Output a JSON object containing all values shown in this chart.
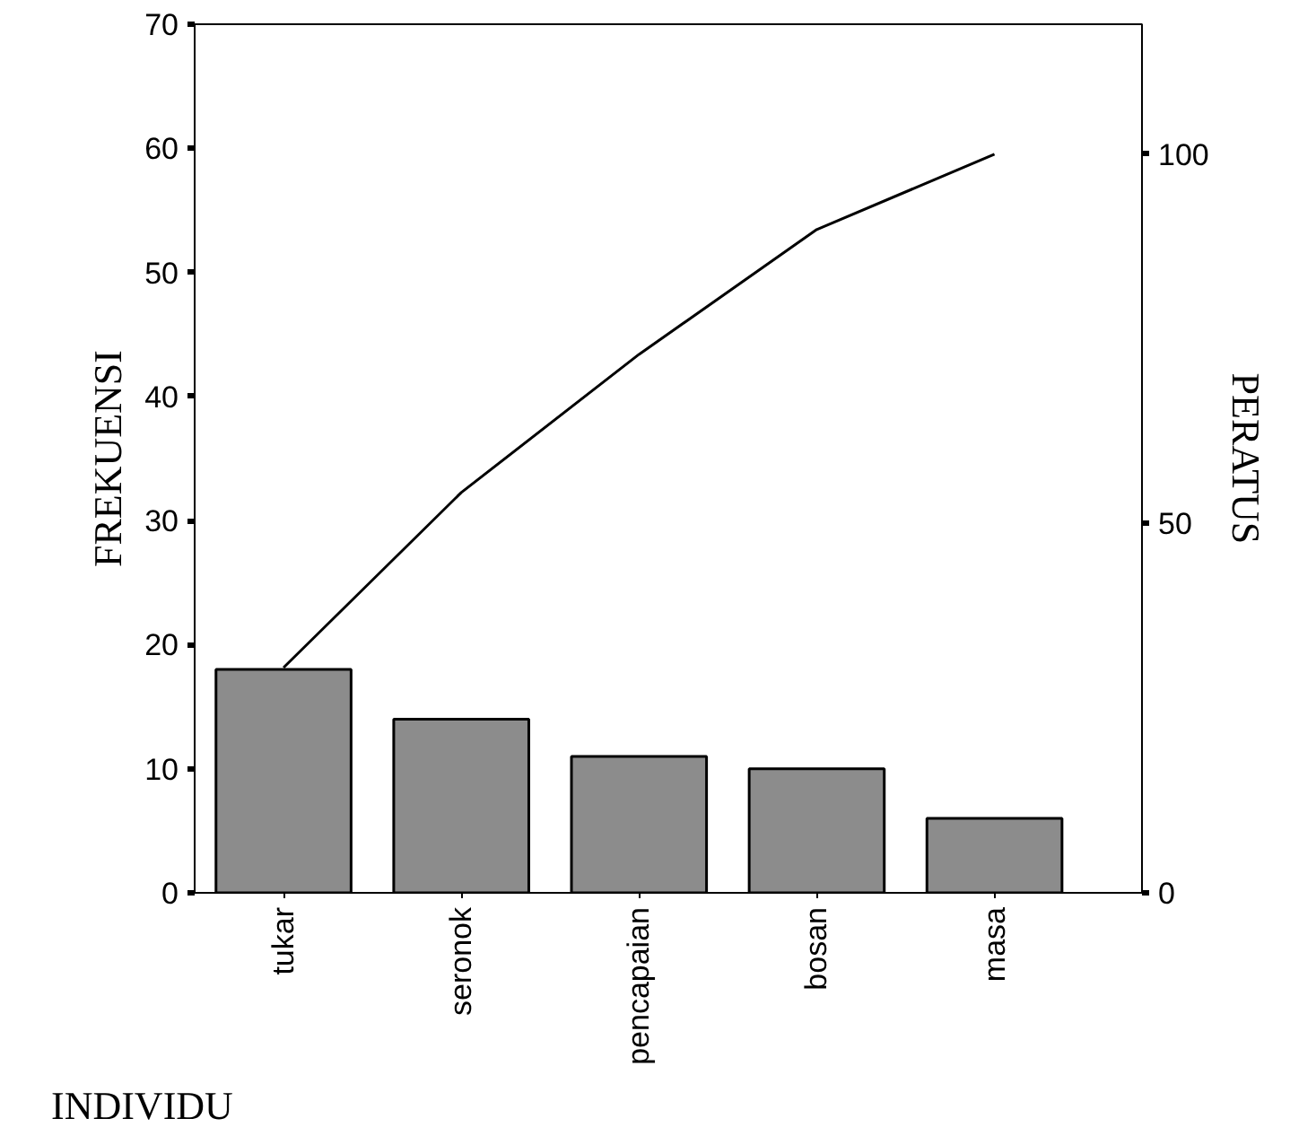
{
  "chart_data": {
    "type": "bar",
    "xlabel": "INDIVIDU",
    "ylabel": "FREKUENSI",
    "y2label": "PERATUS",
    "categories": [
      "tukar",
      "seronok",
      "pencapaian",
      "bosan",
      "masa"
    ],
    "series": [
      {
        "color": "#8c8c8c",
        "values": [
          18,
          14,
          11,
          10,
          6
        ]
      },
      {
        "type": "line",
        "axis": "y2",
        "color": "#000000",
        "values": [
          30.5,
          54.2,
          72.9,
          89.8,
          100
        ]
      }
    ],
    "ylim": [
      0,
      70
    ],
    "yticks": [
      0,
      10,
      20,
      30,
      40,
      50,
      60,
      70
    ],
    "y2lim": [
      0,
      117.6
    ],
    "y2ticks": [
      0,
      50,
      100
    ],
    "grid": false,
    "marker": "none",
    "line_style": "solid"
  }
}
